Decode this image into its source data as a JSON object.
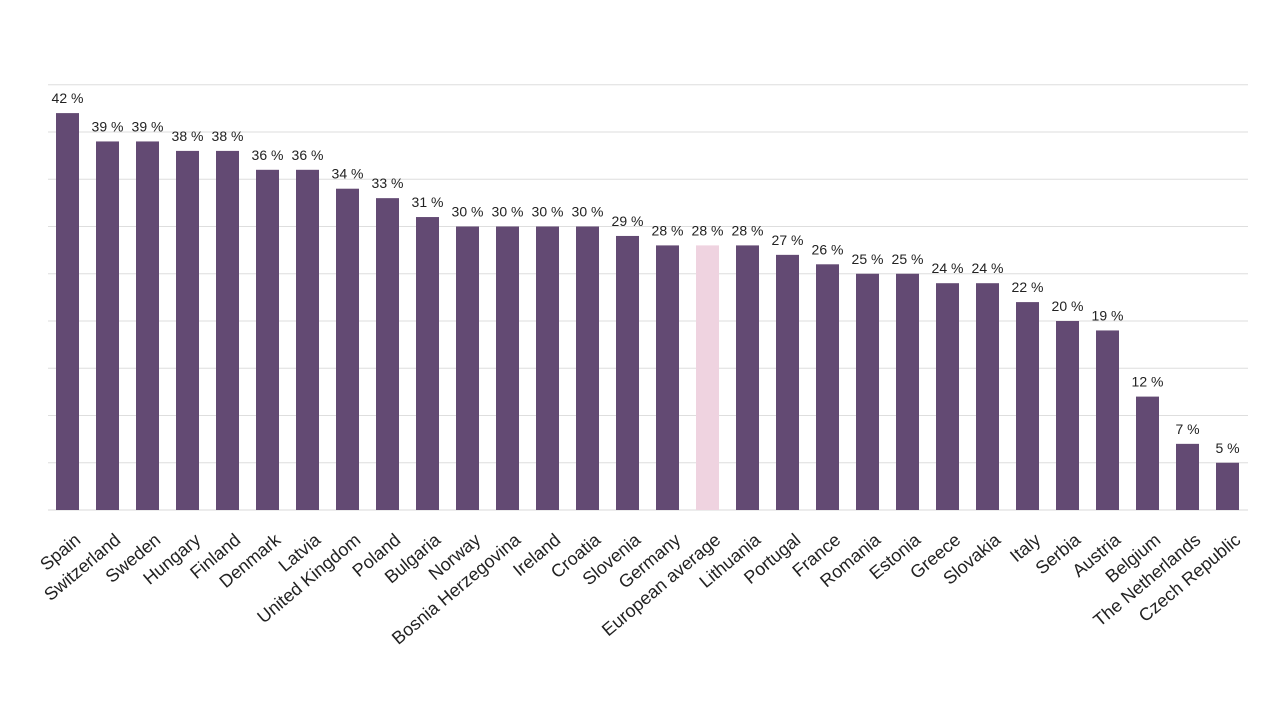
{
  "chart_data": {
    "type": "bar",
    "title": "",
    "xlabel": "",
    "ylabel": "",
    "ylim": [
      0,
      45
    ],
    "grid": true,
    "value_suffix": " %",
    "bar_color": "#634a73",
    "highlight_color": "#efd3e0",
    "highlight_category": "European average",
    "categories": [
      "Spain",
      "Switzerland",
      "Sweden",
      "Hungary",
      "Finland",
      "Denmark",
      "Latvia",
      "United Kingdom",
      "Poland",
      "Bulgaria",
      "Norway",
      "Bosnia Herzegovina",
      "Ireland",
      "Croatia",
      "Slovenia",
      "Germany",
      "European average",
      "Lithuania",
      "Portugal",
      "France",
      "Romania",
      "Estonia",
      "Greece",
      "Slovakia",
      "Italy",
      "Serbia",
      "Austria",
      "Belgium",
      "The Netherlands",
      "Czech Republic"
    ],
    "values": [
      42,
      39,
      39,
      38,
      38,
      36,
      36,
      34,
      33,
      31,
      30,
      30,
      30,
      30,
      29,
      28,
      28,
      28,
      27,
      26,
      25,
      25,
      24,
      24,
      22,
      20,
      19,
      12,
      7,
      5
    ],
    "value_labels": [
      "42 %",
      "39 %",
      "39 %",
      "38 %",
      "38 %",
      "36 %",
      "36 %",
      "34 %",
      "33 %",
      "31 %",
      "30 %",
      "30 %",
      "30 %",
      "30 %",
      "29 %",
      "28 %",
      "28 %",
      "28 %",
      "27 %",
      "26 %",
      "25 %",
      "25 %",
      "24 %",
      "24 %",
      "22 %",
      "20 %",
      "19 %",
      "12 %",
      "7 %",
      "5 %"
    ]
  }
}
